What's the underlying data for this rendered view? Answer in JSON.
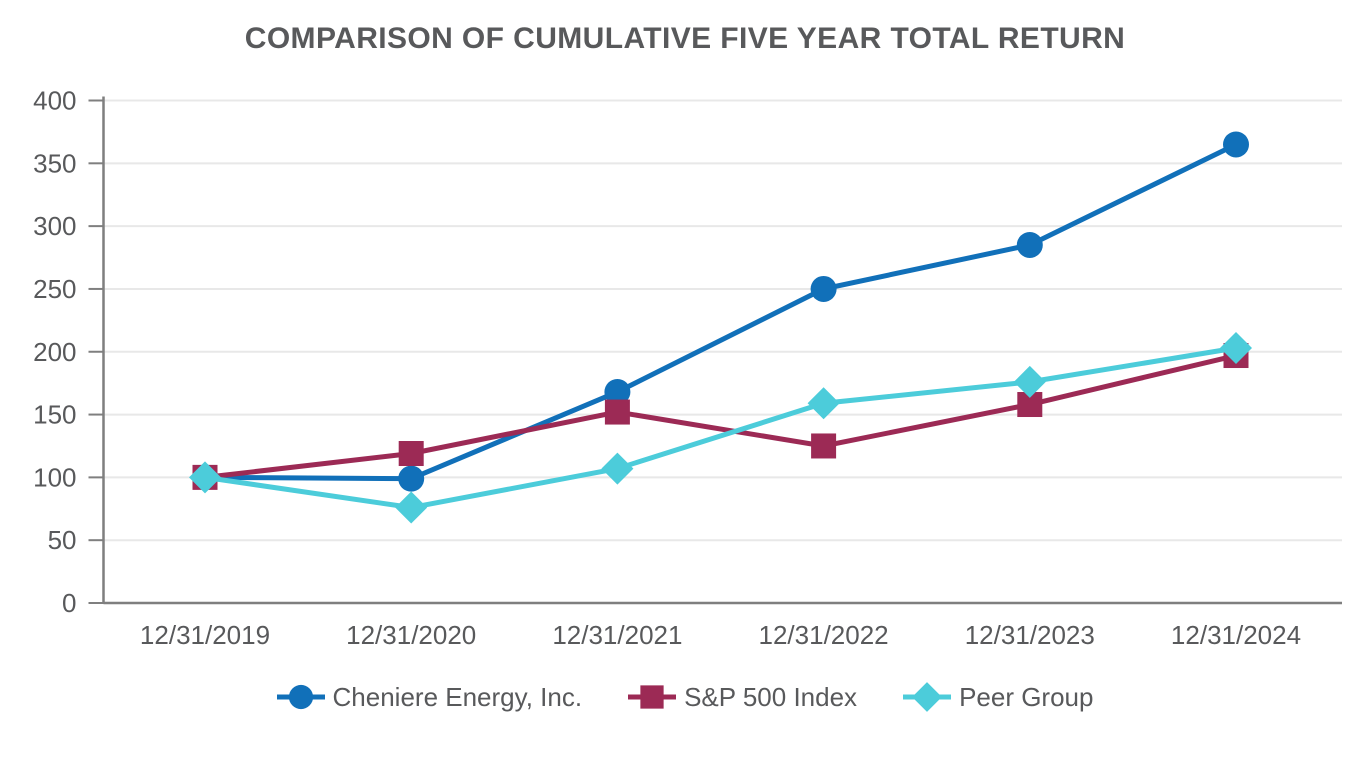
{
  "chart_data": {
    "type": "line",
    "title": "COMPARISON OF CUMULATIVE FIVE YEAR TOTAL RETURN",
    "categories": [
      "12/31/2019",
      "12/31/2020",
      "12/31/2021",
      "12/31/2022",
      "12/31/2023",
      "12/31/2024"
    ],
    "series": [
      {
        "name": "Cheniere Energy, Inc.",
        "marker": "circle",
        "color": "#1170B9",
        "values": [
          100,
          99,
          168,
          250,
          285,
          365
        ]
      },
      {
        "name": "S&P 500 Index",
        "marker": "square",
        "color": "#9C2A55",
        "values": [
          100,
          119,
          152,
          125,
          158,
          197
        ]
      },
      {
        "name": "Peer Group",
        "marker": "diamond",
        "color": "#4CCCDA",
        "values": [
          100,
          76,
          107,
          159,
          176,
          203
        ]
      }
    ],
    "y_axis": {
      "min": 0,
      "max": 400,
      "tick_interval": 50,
      "ticks": [
        0,
        50,
        100,
        150,
        200,
        250,
        300,
        350,
        400
      ]
    },
    "x_axis_label": "",
    "y_axis_label": "",
    "grid": "horizontal",
    "legend_position": "bottom",
    "colors": {
      "text": "#58595B",
      "axis": "#7F7F7F",
      "gridline": "#E8E8E8",
      "background": "#FFFFFF"
    }
  }
}
